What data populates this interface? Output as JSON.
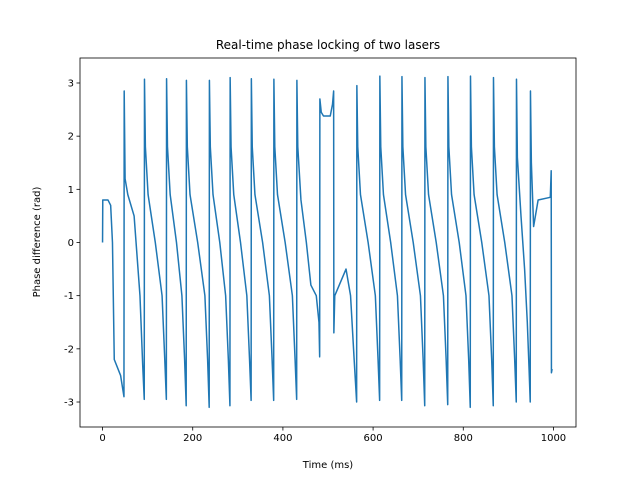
{
  "chart_data": {
    "type": "line",
    "title": "Real-time phase locking of two lasers",
    "x_label": "Time (ms)",
    "y_label": "Phase difference (rad)",
    "xlim": [
      -50,
      1050
    ],
    "ylim": [
      -3.47,
      3.47
    ],
    "xticks": [
      0,
      200,
      400,
      600,
      800,
      1000
    ],
    "yticks": [
      -3,
      -2,
      -1,
      0,
      1,
      2,
      3
    ],
    "series": [
      {
        "color": "#1f77b4",
        "x": [
          0,
          0.5,
          12,
          18,
          22,
          26,
          40,
          47.5,
          48,
          50,
          56,
          70,
          83,
          89,
          92.5,
          93,
          95,
          101,
          117,
          132,
          138,
          141.5,
          142,
          144,
          150,
          164,
          176,
          182,
          185.5,
          186,
          188,
          194,
          211,
          227,
          233,
          236.5,
          237,
          239,
          245,
          260,
          273,
          279,
          282.5,
          283,
          285,
          291,
          306,
          320,
          326,
          329.5,
          330,
          332,
          338,
          355,
          370,
          376,
          379.5,
          380,
          382,
          388,
          405,
          421,
          427,
          430.5,
          431,
          433,
          440,
          452,
          462,
          474,
          480,
          481.5,
          482,
          485,
          490,
          505,
          510,
          512.5,
          513,
          515,
          525,
          540,
          550,
          558,
          563.5,
          564,
          566,
          572,
          589,
          605,
          611,
          614.5,
          615,
          617,
          623,
          639,
          654,
          660,
          663.5,
          664,
          666,
          672,
          689,
          705,
          711,
          714.5,
          715,
          717,
          723,
          740,
          756,
          762,
          765.5,
          766,
          768,
          774,
          791,
          806,
          812,
          815.5,
          816,
          818,
          824,
          841,
          857,
          863,
          866.5,
          867,
          869,
          875,
          892,
          908,
          914,
          917.5,
          918,
          920,
          928,
          936,
          942,
          946,
          948.5,
          949,
          951,
          956,
          960,
          966,
          993,
          995,
          995.5,
          997
        ],
        "values": [
          0,
          0.8,
          0.8,
          0.7,
          0,
          -2.2,
          -2.5,
          -2.9,
          2.85,
          1.2,
          0.9,
          0.5,
          -1.0,
          -2.3,
          -2.95,
          3.07,
          1.8,
          0.9,
          0,
          -1.0,
          -2.2,
          -2.95,
          3.08,
          1.8,
          0.9,
          0,
          -1.0,
          -2.2,
          -3.07,
          3.05,
          1.8,
          0.9,
          0,
          -1.0,
          -2.2,
          -3.1,
          3.05,
          1.8,
          0.9,
          0,
          -1.0,
          -2.2,
          -3.07,
          3.1,
          1.8,
          0.9,
          0,
          -1.0,
          -2.2,
          -2.97,
          3.08,
          1.8,
          0.9,
          0,
          -1.0,
          -2.2,
          -2.97,
          3.07,
          1.8,
          0.9,
          0,
          -1.0,
          -2.2,
          -2.95,
          3.05,
          1.8,
          0.8,
          0,
          -0.8,
          -1.0,
          -1.5,
          -2.15,
          2.7,
          2.45,
          2.38,
          2.38,
          2.6,
          2.85,
          -1.7,
          -1.0,
          -0.8,
          -0.5,
          -1.0,
          -2.2,
          -3.0,
          2.95,
          1.8,
          0.9,
          0,
          -1.0,
          -2.2,
          -2.97,
          3.13,
          1.8,
          0.9,
          0,
          -1.0,
          -2.2,
          -2.97,
          3.12,
          1.8,
          0.9,
          0,
          -1.0,
          -2.2,
          -3.07,
          3.1,
          1.8,
          0.9,
          0,
          -1.0,
          -2.2,
          -3.05,
          3.12,
          1.8,
          0.9,
          0,
          -1.0,
          -2.2,
          -3.1,
          3.13,
          1.8,
          0.9,
          0,
          -1.0,
          -2.2,
          -3.07,
          3.1,
          1.8,
          0.9,
          0,
          -1.0,
          -2.2,
          -3.0,
          3.07,
          1.6,
          0.5,
          -0.5,
          -1.5,
          -2.4,
          -3.0,
          2.85,
          1.5,
          0.3,
          0.5,
          0.8,
          0.85,
          1.35,
          -2.45,
          -2.38
        ]
      }
    ]
  }
}
